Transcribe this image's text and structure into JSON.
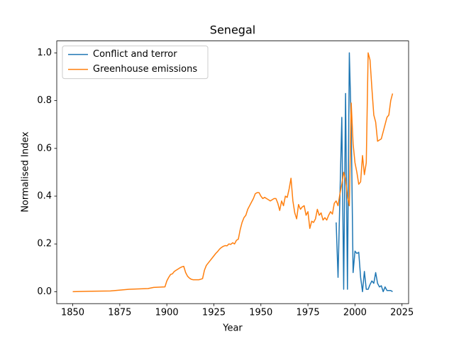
{
  "chart_data": {
    "type": "line",
    "title": "Senegal",
    "x_label": "Year",
    "y_label": "Normalised Index",
    "x": [
      1850,
      1860,
      1870,
      1880,
      1890,
      1893,
      1899,
      1900,
      1901,
      1902,
      1903,
      1904,
      1905,
      1906,
      1907,
      1908,
      1909,
      1910,
      1911,
      1912,
      1913,
      1914,
      1915,
      1916,
      1917,
      1918,
      1919,
      1920,
      1921,
      1922,
      1923,
      1924,
      1925,
      1926,
      1927,
      1928,
      1929,
      1930,
      1931,
      1932,
      1933,
      1934,
      1935,
      1936,
      1937,
      1938,
      1939,
      1940,
      1941,
      1942,
      1943,
      1944,
      1945,
      1946,
      1947,
      1948,
      1949,
      1950,
      1951,
      1952,
      1953,
      1954,
      1955,
      1956,
      1957,
      1958,
      1959,
      1960,
      1961,
      1962,
      1963,
      1964,
      1965,
      1966,
      1967,
      1968,
      1969,
      1970,
      1971,
      1972,
      1973,
      1974,
      1975,
      1976,
      1977,
      1978,
      1979,
      1980,
      1981,
      1982,
      1983,
      1984,
      1985,
      1986,
      1987,
      1988,
      1989,
      1990,
      1991,
      1992,
      1993,
      1994,
      1995,
      1996,
      1997,
      1998,
      1999,
      2000,
      2001,
      2002,
      2003,
      2004,
      2005,
      2006,
      2007,
      2008,
      2009,
      2010,
      2011,
      2012,
      2013,
      2014,
      2015,
      2016,
      2017,
      2018,
      2019,
      2020
    ],
    "series": [
      {
        "name": "Conflict and terror",
        "color": "#1f77b4",
        "values": [
          null,
          null,
          null,
          null,
          null,
          null,
          null,
          null,
          null,
          null,
          null,
          null,
          null,
          null,
          null,
          null,
          null,
          null,
          null,
          null,
          null,
          null,
          null,
          null,
          null,
          null,
          null,
          null,
          null,
          null,
          null,
          null,
          null,
          null,
          null,
          null,
          null,
          null,
          null,
          null,
          null,
          null,
          null,
          null,
          null,
          null,
          null,
          null,
          null,
          null,
          null,
          null,
          null,
          null,
          null,
          null,
          null,
          null,
          null,
          null,
          null,
          null,
          null,
          null,
          null,
          null,
          null,
          null,
          null,
          null,
          null,
          null,
          null,
          null,
          null,
          null,
          null,
          null,
          null,
          null,
          null,
          null,
          null,
          null,
          null,
          null,
          null,
          null,
          null,
          null,
          null,
          null,
          null,
          null,
          null,
          null,
          null,
          0.29,
          0.06,
          0.4,
          0.73,
          0.01,
          0.83,
          0.01,
          1.0,
          0.7,
          0.08,
          0.17,
          0.16,
          0.165,
          0.06,
          0.0,
          0.085,
          0.01,
          0.01,
          0.03,
          0.045,
          0.035,
          0.08,
          0.035,
          0.02,
          0.025,
          0.0,
          0.02,
          0.005,
          0.005,
          0.005,
          0.0
        ]
      },
      {
        "name": "Greenhouse emissions",
        "color": "#ff7f0e",
        "values": [
          0,
          0.002,
          0.003,
          0.01,
          0.013,
          0.018,
          0.02,
          0.045,
          0.06,
          0.072,
          0.075,
          0.085,
          0.09,
          0.095,
          0.1,
          0.104,
          0.106,
          0.08,
          0.065,
          0.057,
          0.052,
          0.05,
          0.05,
          0.05,
          0.05,
          0.052,
          0.055,
          0.09,
          0.11,
          0.12,
          0.13,
          0.14,
          0.15,
          0.16,
          0.168,
          0.178,
          0.185,
          0.19,
          0.193,
          0.192,
          0.2,
          0.198,
          0.205,
          0.2,
          0.215,
          0.22,
          0.26,
          0.29,
          0.31,
          0.32,
          0.345,
          0.36,
          0.375,
          0.39,
          0.41,
          0.415,
          0.415,
          0.4,
          0.39,
          0.395,
          0.39,
          0.385,
          0.38,
          0.385,
          0.39,
          0.39,
          0.37,
          0.34,
          0.38,
          0.36,
          0.4,
          0.395,
          0.43,
          0.475,
          0.38,
          0.33,
          0.305,
          0.365,
          0.345,
          0.355,
          0.36,
          0.32,
          0.335,
          0.265,
          0.295,
          0.29,
          0.305,
          0.345,
          0.32,
          0.33,
          0.3,
          0.31,
          0.3,
          0.32,
          0.335,
          0.325,
          0.37,
          0.38,
          0.36,
          0.41,
          0.45,
          0.5,
          0.47,
          0.4,
          0.36,
          0.79,
          0.62,
          0.54,
          0.5,
          0.45,
          0.46,
          0.57,
          0.49,
          0.54,
          1.0,
          0.97,
          0.85,
          0.74,
          0.71,
          0.63,
          0.635,
          0.64,
          0.67,
          0.7,
          0.73,
          0.74,
          0.8,
          0.83
        ]
      }
    ],
    "xlim": [
      1841.5,
      2028.5
    ],
    "xticks": [
      1850,
      1875,
      1900,
      1925,
      1950,
      1975,
      2000,
      2025
    ],
    "ylim": [
      -0.05,
      1.05
    ],
    "yticks": [
      {
        "value": 0,
        "label": "0.0"
      },
      0.2,
      0.4,
      0.6,
      0.8,
      {
        "value": 1,
        "label": "1.0"
      }
    ],
    "legend": "upper left"
  }
}
